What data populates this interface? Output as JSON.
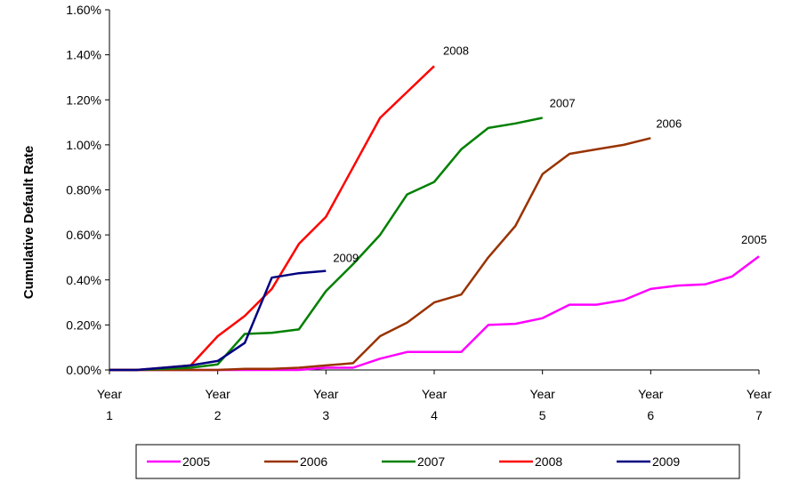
{
  "chart_data": {
    "type": "line",
    "title": "",
    "xlabel": "",
    "ylabel": "Cumulative Default Rate",
    "x_ticks": [
      {
        "line1": "Year",
        "line2": "1"
      },
      {
        "line1": "Year",
        "line2": "2"
      },
      {
        "line1": "Year",
        "line2": "3"
      },
      {
        "line1": "Year",
        "line2": "4"
      },
      {
        "line1": "Year",
        "line2": "5"
      },
      {
        "line1": "Year",
        "line2": "6"
      },
      {
        "line1": "Year",
        "line2": "7"
      }
    ],
    "y_ticks": [
      "0.00%",
      "0.20%",
      "0.40%",
      "0.60%",
      "0.80%",
      "1.00%",
      "1.20%",
      "1.40%",
      "1.60%"
    ],
    "xlim": [
      1,
      7
    ],
    "ylim": [
      0,
      1.6
    ],
    "grid": false,
    "legend": "bottom",
    "series": [
      {
        "name": "2005",
        "color": "#ff00ff",
        "end_label": "2005",
        "x": [
          1,
          1.25,
          1.5,
          1.75,
          2,
          2.25,
          2.5,
          2.75,
          3,
          3.25,
          3.5,
          3.75,
          4,
          4.25,
          4.5,
          4.75,
          5,
          5.25,
          5.5,
          5.75,
          6,
          6.25,
          6.5,
          6.75,
          7
        ],
        "y": [
          0.0,
          0.0,
          0.0,
          0.0,
          0.0,
          0.0,
          0.0,
          0.0,
          0.01,
          0.01,
          0.05,
          0.08,
          0.08,
          0.08,
          0.2,
          0.205,
          0.23,
          0.29,
          0.29,
          0.31,
          0.36,
          0.375,
          0.38,
          0.415,
          0.505
        ]
      },
      {
        "name": "2006",
        "color": "#993300",
        "end_label": "2006",
        "x": [
          1,
          1.25,
          1.5,
          1.75,
          2,
          2.25,
          2.5,
          2.75,
          3,
          3.25,
          3.5,
          3.75,
          4,
          4.25,
          4.5,
          4.75,
          5,
          5.25,
          5.5,
          5.75,
          6
        ],
        "y": [
          0.0,
          0.0,
          0.0,
          0.0,
          0.0,
          0.005,
          0.005,
          0.01,
          0.02,
          0.03,
          0.15,
          0.21,
          0.3,
          0.335,
          0.5,
          0.64,
          0.87,
          0.96,
          0.98,
          1.0,
          1.03
        ]
      },
      {
        "name": "2007",
        "color": "#008000",
        "end_label": "2007",
        "x": [
          1,
          1.25,
          1.5,
          1.75,
          2,
          2.25,
          2.5,
          2.75,
          3,
          3.25,
          3.5,
          3.75,
          4,
          4.25,
          4.5,
          4.75,
          5
        ],
        "y": [
          0.0,
          0.0,
          0.005,
          0.01,
          0.025,
          0.16,
          0.165,
          0.18,
          0.35,
          0.47,
          0.6,
          0.78,
          0.835,
          0.98,
          1.075,
          1.095,
          1.12
        ]
      },
      {
        "name": "2008",
        "color": "#ff0000",
        "end_label": "2008",
        "x": [
          1,
          1.25,
          1.5,
          1.75,
          2,
          2.25,
          2.5,
          2.75,
          3,
          3.25,
          3.5,
          3.75,
          4
        ],
        "y": [
          0.0,
          0.0,
          0.01,
          0.02,
          0.15,
          0.24,
          0.36,
          0.56,
          0.68,
          0.9,
          1.12,
          1.235,
          1.35
        ]
      },
      {
        "name": "2009",
        "color": "#000080",
        "end_label": "2009",
        "x": [
          1,
          1.25,
          1.5,
          1.75,
          2,
          2.25,
          2.5,
          2.75,
          3
        ],
        "y": [
          0.0,
          0.0,
          0.01,
          0.02,
          0.04,
          0.12,
          0.41,
          0.43,
          0.44
        ]
      }
    ]
  }
}
